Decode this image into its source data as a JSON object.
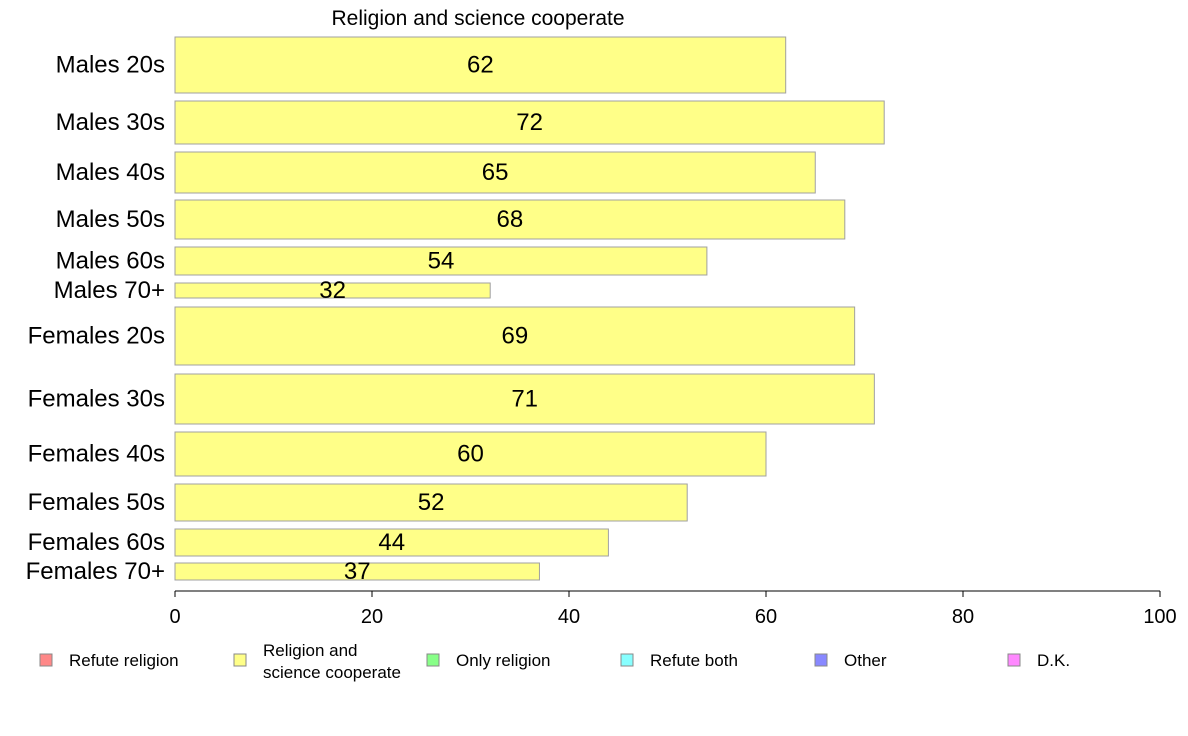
{
  "chart_data": {
    "type": "bar",
    "orientation": "horizontal",
    "title": "Religion and science cooperate",
    "xlabel": "",
    "ylabel": "",
    "xlim": [
      0,
      100
    ],
    "xticks": [
      0,
      20,
      40,
      60,
      80,
      100
    ],
    "categories": [
      "Males 20s",
      "Males 30s",
      "Males 40s",
      "Males 50s",
      "Males 60s",
      "Males 70+",
      "Females 20s",
      "Females 30s",
      "Females 40s",
      "Females 50s",
      "Females 60s",
      "Females 70+"
    ],
    "series": [
      {
        "name": "Religion and science cooperate",
        "color": "#ffff88",
        "values": [
          62,
          72,
          65,
          68,
          54,
          32,
          69,
          71,
          60,
          52,
          44,
          37
        ]
      }
    ],
    "legend_position": "bottom",
    "legend": [
      {
        "label": [
          "Refute religion"
        ],
        "color": "#ff8888"
      },
      {
        "label": [
          "Religion and",
          "science cooperate"
        ],
        "color": "#ffff88"
      },
      {
        "label": [
          "Only religion"
        ],
        "color": "#88ff88"
      },
      {
        "label": [
          "Refute both"
        ],
        "color": "#88ffff"
      },
      {
        "label": [
          "Other"
        ],
        "color": "#8888ff"
      },
      {
        "label": [
          "D.K."
        ],
        "color": "#ff88ff"
      }
    ]
  }
}
